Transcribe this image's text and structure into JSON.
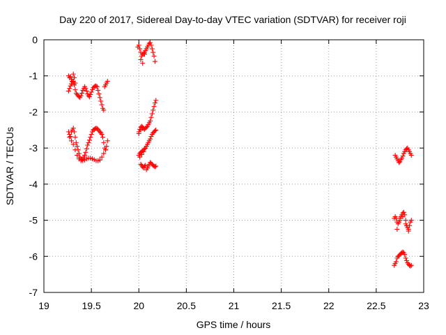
{
  "chart_data": {
    "type": "scatter",
    "title": "Day 220 of 2017, Sidereal Day-to-day VTEC variation (SDTVAR) for receiver roji",
    "xlabel": "GPS time / hours",
    "ylabel": "SDTVAR / TECUs",
    "xlim": [
      19,
      23
    ],
    "ylim": [
      -7,
      0
    ],
    "xticks": [
      19,
      19.5,
      20,
      20.5,
      21,
      21.5,
      22,
      22.5,
      23
    ],
    "xtick_labels": [
      "19",
      "19.5",
      "20",
      "20.5",
      "21",
      "21.5",
      "22",
      "22.5",
      "23"
    ],
    "yticks": [
      0,
      -1,
      -2,
      -3,
      -4,
      -5,
      -6,
      -7
    ],
    "ytick_labels": [
      "0",
      "-1",
      "-2",
      "-3",
      "-4",
      "-5",
      "-6",
      "-7"
    ],
    "grid": true,
    "marker": "+",
    "color": "#ff0000",
    "series": [
      {
        "x": [
          19.26,
          19.27,
          19.28,
          19.29,
          19.3,
          19.31,
          19.32,
          19.33,
          19.34,
          19.35,
          19.36,
          19.37,
          19.38,
          19.39,
          19.4,
          19.41,
          19.42,
          19.43,
          19.44,
          19.45,
          19.46,
          19.47,
          19.48,
          19.49,
          19.5,
          19.51,
          19.52,
          19.53,
          19.54,
          19.55,
          19.56,
          19.57,
          19.58,
          19.59,
          19.6,
          19.61,
          19.62,
          19.63,
          19.64,
          19.65,
          19.66,
          19.67,
          19.26,
          19.27,
          19.28,
          19.29,
          19.3,
          19.31,
          19.32,
          19.33
        ],
        "y": [
          -1.42,
          -1.35,
          -1.28,
          -1.22,
          -1.17,
          -1.15,
          -1.25,
          -1.38,
          -1.48,
          -1.52,
          -1.55,
          -1.58,
          -1.6,
          -1.55,
          -1.48,
          -1.4,
          -1.35,
          -1.3,
          -1.35,
          -1.42,
          -1.5,
          -1.55,
          -1.58,
          -1.52,
          -1.45,
          -1.38,
          -1.33,
          -1.3,
          -1.28,
          -1.28,
          -1.3,
          -1.4,
          -1.5,
          -1.6,
          -1.7,
          -1.8,
          -1.9,
          -1.95,
          -1.3,
          -1.25,
          -1.2,
          -1.15,
          -1.0,
          -1.05,
          -1.02,
          -1.1,
          -1.15,
          -0.95,
          -1.05,
          -1.2
        ]
      },
      {
        "x": [
          19.26,
          19.27,
          19.28,
          19.29,
          19.3,
          19.31,
          19.32,
          19.33,
          19.34,
          19.35,
          19.36,
          19.37,
          19.38,
          19.39,
          19.4,
          19.41,
          19.42,
          19.43,
          19.44,
          19.45,
          19.46,
          19.47,
          19.48,
          19.49,
          19.5,
          19.51,
          19.52,
          19.53,
          19.54,
          19.55,
          19.56,
          19.57,
          19.58,
          19.59,
          19.6,
          19.61,
          19.62,
          19.63,
          19.64,
          19.65,
          19.66,
          19.67,
          19.27,
          19.29,
          19.31,
          19.33,
          19.35,
          19.37,
          19.39,
          19.41,
          19.43,
          19.45,
          19.47,
          19.49,
          19.51,
          19.53,
          19.55,
          19.57,
          19.59,
          19.61,
          19.63,
          19.65
        ],
        "y": [
          -2.55,
          -2.62,
          -2.68,
          -2.55,
          -2.5,
          -2.45,
          -2.55,
          -2.7,
          -2.85,
          -2.95,
          -3.05,
          -3.15,
          -3.25,
          -3.3,
          -3.32,
          -3.3,
          -3.25,
          -3.2,
          -3.12,
          -3.02,
          -2.92,
          -2.85,
          -2.78,
          -2.7,
          -2.62,
          -2.55,
          -2.5,
          -2.48,
          -2.46,
          -2.45,
          -2.46,
          -2.48,
          -2.52,
          -2.55,
          -2.58,
          -2.62,
          -2.7,
          -2.85,
          -3.0,
          -3.05,
          -2.95,
          -2.8,
          -2.7,
          -2.8,
          -2.9,
          -3.05,
          -3.2,
          -3.3,
          -3.35,
          -3.35,
          -3.33,
          -3.3,
          -3.28,
          -3.28,
          -3.3,
          -3.32,
          -3.35,
          -3.35,
          -3.33,
          -3.25,
          -3.15,
          -3.05
        ]
      },
      {
        "x": [
          19.99,
          20.0,
          20.01,
          20.02,
          20.03,
          20.04,
          20.05,
          20.06,
          20.07,
          20.08,
          20.09,
          20.1,
          20.11,
          20.12,
          20.13,
          20.14,
          20.15,
          20.16,
          20.17,
          20.02,
          20.04,
          20.06
        ],
        "y": [
          -0.2,
          -0.15,
          -0.25,
          -0.35,
          -0.45,
          -0.4,
          -0.38,
          -0.35,
          -0.3,
          -0.25,
          -0.2,
          -0.15,
          -0.1,
          -0.08,
          -0.15,
          -0.25,
          -0.35,
          -0.45,
          -0.6,
          -0.55,
          -0.65,
          -0.4
        ]
      },
      {
        "x": [
          20.0,
          20.01,
          20.02,
          20.03,
          20.04,
          20.05,
          20.06,
          20.07,
          20.08,
          20.09,
          20.1,
          20.11,
          20.12,
          20.13,
          20.14,
          20.15,
          20.16,
          20.17,
          20.18,
          20.0,
          20.02,
          20.04
        ],
        "y": [
          -2.55,
          -2.48,
          -2.42,
          -2.4,
          -2.42,
          -2.45,
          -2.48,
          -2.45,
          -2.42,
          -2.4,
          -2.35,
          -2.3,
          -2.25,
          -2.15,
          -2.05,
          -1.95,
          -1.85,
          -1.75,
          -1.68,
          -2.6,
          -2.5,
          -2.45
        ]
      },
      {
        "x": [
          20.0,
          20.01,
          20.02,
          20.03,
          20.04,
          20.05,
          20.06,
          20.07,
          20.08,
          20.09,
          20.1,
          20.11,
          20.12,
          20.13,
          20.14,
          20.15,
          20.16,
          20.17,
          20.18,
          20.01,
          20.03,
          20.05
        ],
        "y": [
          -3.2,
          -3.15,
          -3.12,
          -3.1,
          -3.08,
          -3.05,
          -3.02,
          -3.0,
          -2.95,
          -2.9,
          -2.85,
          -2.8,
          -2.75,
          -2.68,
          -2.62,
          -2.58,
          -2.55,
          -2.52,
          -2.5,
          -3.25,
          -3.18,
          -3.1
        ]
      },
      {
        "x": [
          20.02,
          20.03,
          20.04,
          20.05,
          20.06,
          20.07,
          20.08,
          20.09,
          20.1,
          20.11,
          20.12,
          20.13,
          20.14,
          20.15,
          20.16,
          20.17,
          20.18
        ],
        "y": [
          -3.45,
          -3.48,
          -3.52,
          -3.55,
          -3.5,
          -3.48,
          -3.6,
          -3.55,
          -3.5,
          -3.45,
          -3.4,
          -3.42,
          -3.45,
          -3.48,
          -3.5,
          -3.52,
          -3.5
        ]
      },
      {
        "x": [
          22.7,
          22.71,
          22.72,
          22.73,
          22.74,
          22.75,
          22.76,
          22.77,
          22.78,
          22.79,
          22.8,
          22.81,
          22.82,
          22.83,
          22.84,
          22.85,
          22.86,
          22.87
        ],
        "y": [
          -3.2,
          -3.25,
          -3.3,
          -3.35,
          -3.4,
          -3.38,
          -3.32,
          -3.28,
          -3.22,
          -3.15,
          -3.1,
          -3.05,
          -3.02,
          -3.0,
          -3.05,
          -3.1,
          -3.15,
          -3.2
        ]
      },
      {
        "x": [
          22.69,
          22.7,
          22.71,
          22.72,
          22.73,
          22.74,
          22.75,
          22.76,
          22.77,
          22.78,
          22.79,
          22.8,
          22.81,
          22.82,
          22.83,
          22.84,
          22.85,
          22.86,
          22.87,
          22.72,
          22.75,
          22.78,
          22.81,
          22.84
        ],
        "y": [
          -4.95,
          -4.9,
          -4.95,
          -5.05,
          -5.1,
          -5.05,
          -4.95,
          -4.9,
          -4.85,
          -4.8,
          -4.78,
          -4.85,
          -5.0,
          -5.15,
          -5.2,
          -5.25,
          -5.15,
          -5.05,
          -5.0,
          -5.25,
          -5.0,
          -4.9,
          -5.1,
          -5.3
        ]
      },
      {
        "x": [
          22.69,
          22.7,
          22.71,
          22.72,
          22.73,
          22.74,
          22.75,
          22.76,
          22.77,
          22.78,
          22.79,
          22.8,
          22.81,
          22.82,
          22.83,
          22.84,
          22.85,
          22.86,
          22.87
        ],
        "y": [
          -6.25,
          -6.2,
          -6.15,
          -6.05,
          -6.0,
          -5.98,
          -5.95,
          -5.92,
          -5.9,
          -5.88,
          -5.9,
          -5.95,
          -6.05,
          -6.12,
          -6.18,
          -6.22,
          -6.25,
          -6.27,
          -6.25
        ]
      }
    ]
  }
}
